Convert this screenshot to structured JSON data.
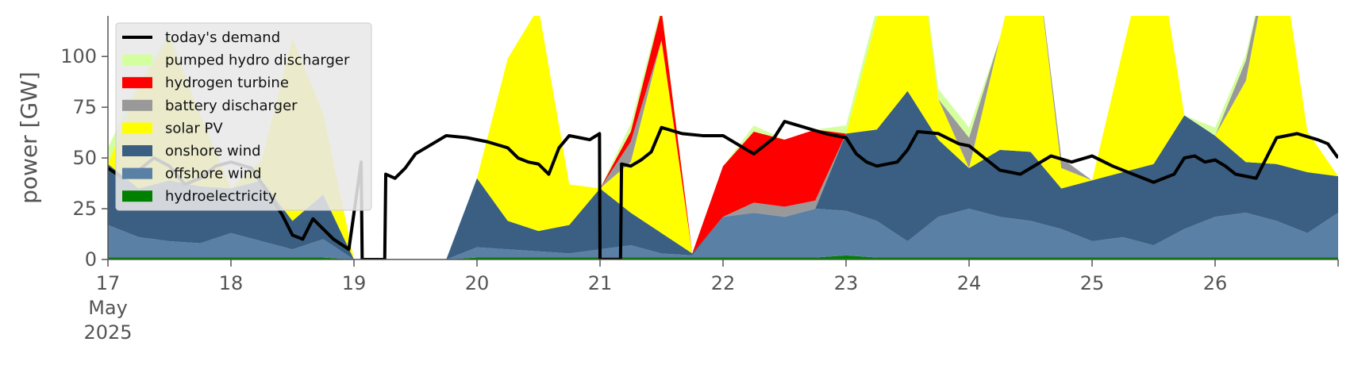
{
  "chart_data": {
    "type": "area",
    "title": "",
    "xlabel": "",
    "ylabel": "power [GW]",
    "ylim": [
      0,
      120
    ],
    "y_ticks": [
      0,
      25,
      50,
      75,
      100
    ],
    "x_range_days": [
      "2025-05-17T00:00",
      "2025-05-27T00:00"
    ],
    "x_ticks": [
      {
        "date": "2025-05-17",
        "label": "17",
        "sub1": "May",
        "sub2": "2025"
      },
      {
        "date": "2025-05-18",
        "label": "18"
      },
      {
        "date": "2025-05-19",
        "label": "19"
      },
      {
        "date": "2025-05-20",
        "label": "20"
      },
      {
        "date": "2025-05-21",
        "label": "21"
      },
      {
        "date": "2025-05-22",
        "label": "22"
      },
      {
        "date": "2025-05-23",
        "label": "23"
      },
      {
        "date": "2025-05-24",
        "label": "24"
      },
      {
        "date": "2025-05-25",
        "label": "25"
      },
      {
        "date": "2025-05-26",
        "label": "26"
      }
    ],
    "grid": false,
    "legend_position": "top-left",
    "legend": [
      "today's demand",
      "pumped hydro discharger",
      "hydrogen turbine",
      "battery discharger",
      "solar PV",
      "onshore wind",
      "offshore wind",
      "hydroelectricity"
    ],
    "x_hours": [
      0,
      6,
      12,
      18,
      24,
      30,
      36,
      42,
      48,
      54,
      60,
      66,
      72,
      78,
      84,
      90,
      96,
      102,
      108,
      114,
      120,
      126,
      132,
      138,
      144,
      150,
      156,
      162,
      168,
      174,
      180,
      186,
      192,
      198,
      204,
      210,
      216,
      222,
      228,
      234,
      240
    ],
    "stack": [
      {
        "name": "hydroelectricity",
        "color": "#008000",
        "values": [
          1,
          1,
          1,
          1,
          1,
          1,
          1,
          1,
          0,
          0,
          0,
          0,
          1,
          1,
          1,
          1,
          1,
          1,
          1,
          1,
          1,
          1,
          1,
          1,
          2,
          1,
          1,
          1,
          1,
          1,
          1,
          1,
          1,
          1,
          1,
          1,
          1,
          1,
          1,
          1,
          1
        ]
      },
      {
        "name": "offshore wind",
        "color": "#5b80a5",
        "values": [
          16,
          10,
          8,
          7,
          12,
          8,
          4,
          9,
          0,
          0,
          0,
          0,
          5,
          4,
          3,
          2,
          4,
          6,
          2,
          1,
          20,
          22,
          20,
          24,
          22,
          18,
          8,
          20,
          24,
          20,
          18,
          14,
          8,
          10,
          6,
          14,
          20,
          22,
          18,
          12,
          22
        ]
      },
      {
        "name": "onshore wind",
        "color": "#3a5f82",
        "values": [
          30,
          24,
          30,
          28,
          22,
          30,
          14,
          22,
          0,
          0,
          0,
          0,
          34,
          14,
          10,
          14,
          30,
          16,
          10,
          1,
          0,
          0,
          0,
          0,
          38,
          45,
          74,
          38,
          20,
          33,
          34,
          20,
          30,
          32,
          40,
          56,
          40,
          25,
          28,
          30,
          18
        ]
      },
      {
        "name": "solar PV",
        "color": "#ffff00",
        "values": [
          0,
          50,
          70,
          35,
          0,
          10,
          90,
          40,
          0,
          0,
          0,
          0,
          0,
          80,
          110,
          20,
          0,
          25,
          95,
          0,
          0,
          0,
          0,
          0,
          0,
          55,
          120,
          20,
          0,
          55,
          120,
          10,
          0,
          60,
          120,
          0,
          0,
          40,
          120,
          20,
          0
        ]
      },
      {
        "name": "battery discharger",
        "color": "#999999",
        "values": [
          0,
          0,
          0,
          0,
          0,
          0,
          0,
          0,
          0,
          0,
          0,
          0,
          0,
          0,
          0,
          0,
          0,
          10,
          0,
          0,
          0,
          5,
          5,
          4,
          0,
          0,
          0,
          0,
          15,
          0,
          0,
          5,
          0,
          0,
          0,
          0,
          0,
          10,
          0,
          0,
          0
        ]
      },
      {
        "name": "hydrogen turbine",
        "color": "#ff0000",
        "values": [
          0,
          0,
          0,
          0,
          0,
          0,
          0,
          0,
          0,
          0,
          0,
          0,
          0,
          0,
          0,
          0,
          0,
          5,
          15,
          0,
          25,
          35,
          33,
          35,
          0,
          0,
          0,
          0,
          0,
          0,
          0,
          0,
          0,
          0,
          0,
          0,
          0,
          0,
          0,
          0,
          0
        ]
      },
      {
        "name": "pumped hydro discharger",
        "color": "#d4ff9e",
        "values": [
          8,
          2,
          3,
          0,
          0,
          0,
          0,
          0,
          0,
          0,
          0,
          0,
          0,
          0,
          0,
          0,
          0,
          4,
          2,
          0,
          0,
          3,
          0,
          0,
          4,
          5,
          0,
          5,
          5,
          0,
          0,
          0,
          0,
          0,
          0,
          0,
          4,
          3,
          0,
          0,
          0
        ]
      }
    ],
    "demand": {
      "name": "today's demand",
      "color": "#000000",
      "points": [
        [
          0,
          45
        ],
        [
          3,
          40
        ],
        [
          6,
          44
        ],
        [
          9,
          50
        ],
        [
          12,
          46
        ],
        [
          15,
          37
        ],
        [
          18,
          40
        ],
        [
          21,
          46
        ],
        [
          24,
          48
        ],
        [
          28,
          45
        ],
        [
          32,
          30
        ],
        [
          34,
          22
        ],
        [
          36,
          12
        ],
        [
          38,
          10
        ],
        [
          40,
          20
        ],
        [
          44,
          10
        ],
        [
          47,
          5
        ],
        [
          49.4,
          48
        ],
        [
          49.6,
          0
        ],
        [
          54,
          0
        ],
        [
          54.2,
          42
        ],
        [
          56,
          40
        ],
        [
          58,
          45
        ],
        [
          60,
          52
        ],
        [
          62,
          55
        ],
        [
          66,
          61
        ],
        [
          70,
          60
        ],
        [
          74,
          58
        ],
        [
          78,
          55
        ],
        [
          80,
          50
        ],
        [
          82,
          48
        ],
        [
          84,
          47
        ],
        [
          86,
          42
        ],
        [
          88,
          55
        ],
        [
          90,
          61
        ],
        [
          92,
          60
        ],
        [
          94,
          59
        ],
        [
          95.9,
          62
        ],
        [
          96,
          0
        ],
        [
          100,
          0
        ],
        [
          100.2,
          47
        ],
        [
          102,
          46
        ],
        [
          104,
          49
        ],
        [
          106,
          53
        ],
        [
          108,
          65
        ],
        [
          112,
          62
        ],
        [
          116,
          61
        ],
        [
          120,
          61
        ],
        [
          124,
          55
        ],
        [
          126,
          52
        ],
        [
          130,
          60
        ],
        [
          132,
          68
        ],
        [
          136,
          65
        ],
        [
          140,
          62
        ],
        [
          144,
          60
        ],
        [
          146,
          52
        ],
        [
          148,
          48
        ],
        [
          150,
          46
        ],
        [
          154,
          48
        ],
        [
          156,
          54
        ],
        [
          158,
          63
        ],
        [
          162,
          62
        ],
        [
          166,
          57
        ],
        [
          168,
          56
        ],
        [
          170,
          52
        ],
        [
          172,
          48
        ],
        [
          174,
          44
        ],
        [
          178,
          42
        ],
        [
          180,
          45
        ],
        [
          184,
          51
        ],
        [
          188,
          48
        ],
        [
          192,
          51
        ],
        [
          196,
          46
        ],
        [
          200,
          42
        ],
        [
          202,
          40
        ],
        [
          204,
          38
        ],
        [
          206,
          40
        ],
        [
          208,
          42
        ],
        [
          210,
          50
        ],
        [
          212,
          51
        ],
        [
          214,
          48
        ],
        [
          216,
          49
        ],
        [
          218,
          46
        ],
        [
          220,
          42
        ],
        [
          222,
          41
        ],
        [
          224,
          40
        ],
        [
          226,
          50
        ],
        [
          228,
          60
        ],
        [
          232,
          62
        ],
        [
          236,
          59
        ],
        [
          238,
          57
        ],
        [
          240,
          50
        ]
      ]
    }
  }
}
